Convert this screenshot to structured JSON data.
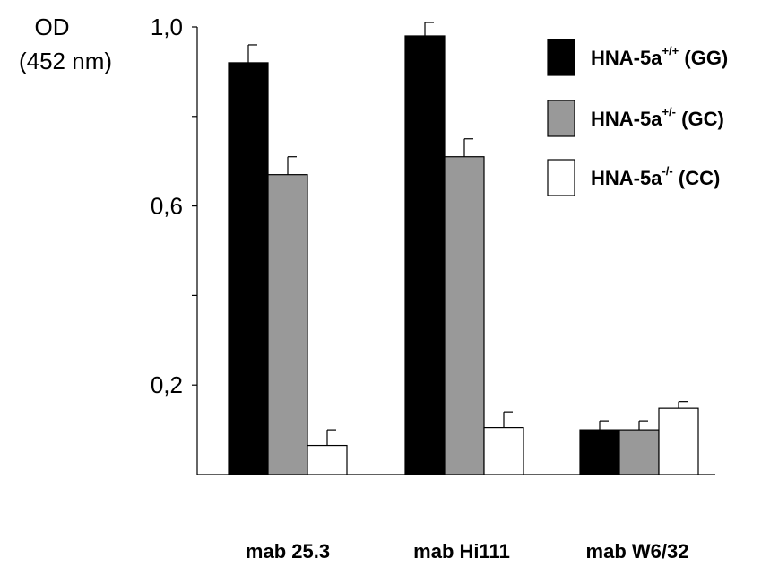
{
  "chart_data": {
    "type": "bar",
    "ylabel_line1": "OD",
    "ylabel_line2": "(452 nm)",
    "ylim": [
      0.0,
      1.0
    ],
    "yticks": [
      {
        "value": 1.0,
        "label": "1,0"
      },
      {
        "value": 0.8,
        "label": ""
      },
      {
        "value": 0.6,
        "label": "0,6"
      },
      {
        "value": 0.4,
        "label": ""
      },
      {
        "value": 0.2,
        "label": "0,2"
      }
    ],
    "categories": [
      "mab 25.3",
      "mab Hi111",
      "mab W6/32"
    ],
    "series": [
      {
        "name": "HNA-5a",
        "sup": "+/+",
        "suffix": " (GG)",
        "color": "#000000",
        "values": [
          0.92,
          0.98,
          0.1
        ],
        "errors": [
          0.04,
          0.03,
          0.02
        ]
      },
      {
        "name": "HNA-5a",
        "sup": "+/-",
        "suffix": " (GC)",
        "color": "#999999",
        "values": [
          0.67,
          0.71,
          0.1
        ],
        "errors": [
          0.04,
          0.04,
          0.02
        ]
      },
      {
        "name": "HNA-5a",
        "sup": "-/-",
        "suffix": " (CC)",
        "color": "#ffffff",
        "values": [
          0.065,
          0.105,
          0.148
        ],
        "errors": [
          0.035,
          0.035,
          0.015
        ]
      }
    ],
    "legend_position": "top-right",
    "grid": false
  }
}
